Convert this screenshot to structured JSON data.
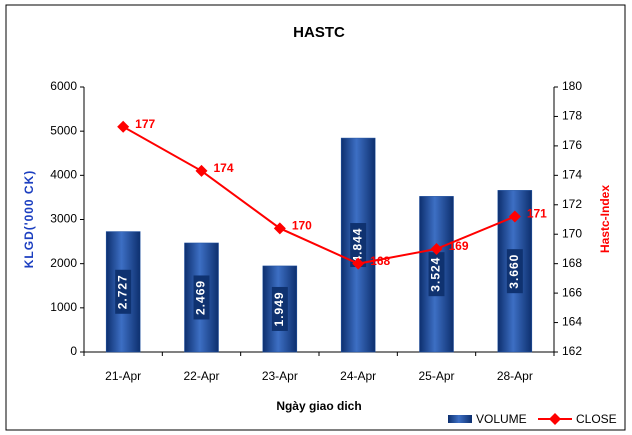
{
  "chart_data": {
    "type": "bar",
    "title": "HASTC",
    "x_label": "Ngày giao dich",
    "y_label": "KLGD('000 CK)",
    "y2_label": "Hastc-Index",
    "categories": [
      "21-Apr",
      "22-Apr",
      "23-Apr",
      "24-Apr",
      "25-Apr",
      "28-Apr"
    ],
    "series": [
      {
        "name": "VOLUME",
        "type": "bar",
        "color": "#1c4fa0",
        "values": [
          2727,
          2469,
          1949,
          4844,
          3524,
          3660
        ],
        "value_labels": [
          "2.727",
          "2.469",
          "1.949",
          "4.844",
          "3.524",
          "3.660"
        ]
      },
      {
        "name": "CLOSE",
        "type": "line",
        "axis": "y2",
        "color": "#ff0000",
        "values": [
          177.3,
          174.3,
          170.4,
          168.0,
          169.0,
          171.2
        ],
        "value_labels": [
          "177",
          "174",
          "170",
          "168",
          "169",
          "171"
        ]
      }
    ],
    "ylim": [
      0,
      6000
    ],
    "yticks": [
      0,
      1000,
      2000,
      3000,
      4000,
      5000,
      6000
    ],
    "y2lim": [
      162,
      180
    ],
    "y2ticks": [
      162,
      164,
      166,
      168,
      170,
      172,
      174,
      176,
      178,
      180
    ],
    "legend": "bottom-right"
  }
}
